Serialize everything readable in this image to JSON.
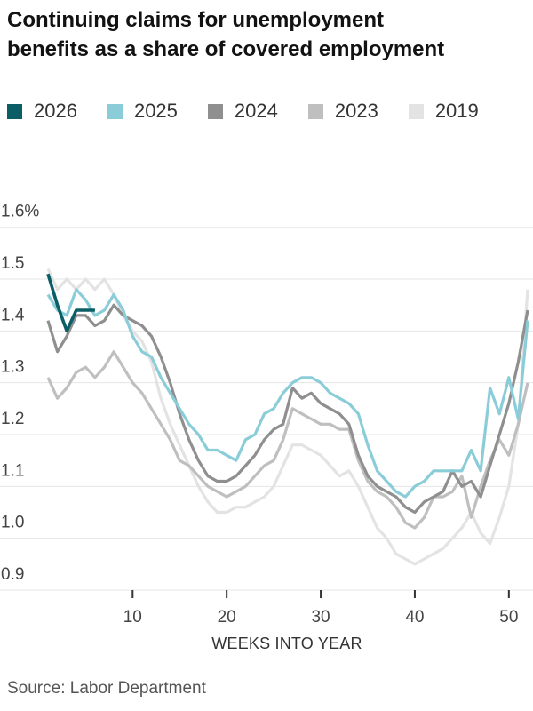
{
  "title_lines": [
    "Continuing claims for unemployment",
    "benefits as a share of covered employment"
  ],
  "source": "Source: Labor Department",
  "colors": {
    "y2026": "#0b5e66",
    "y2025": "#8acdd9",
    "y2024": "#8f8f8f",
    "y2023": "#bfbfbf",
    "y2019": "#e3e3e3",
    "gridline": "#e5e5e5",
    "tick": "#333333",
    "axis_text": "#444444"
  },
  "legend": {
    "items": [
      {
        "label": "2026",
        "color": "#0b5e66"
      },
      {
        "label": "2025",
        "color": "#8acdd9"
      },
      {
        "label": "2024",
        "color": "#8f8f8f"
      },
      {
        "label": "2023",
        "color": "#bfbfbf"
      },
      {
        "label": "2019",
        "color": "#e3e3e3"
      }
    ]
  },
  "chart_data": {
    "type": "line",
    "title": "Continuing claims for unemployment benefits as a share of covered employment",
    "xlabel": "WEEKS INTO YEAR",
    "ylabel": "",
    "xlim": [
      1,
      52
    ],
    "ylim": [
      0.9,
      1.6
    ],
    "grid": true,
    "legend_position": "top",
    "x_ticks": [
      10,
      20,
      30,
      40,
      50
    ],
    "y_ticks": [
      {
        "value": 1.6,
        "label": "1.6%"
      },
      {
        "value": 1.5,
        "label": "1.5"
      },
      {
        "value": 1.4,
        "label": "1.4"
      },
      {
        "value": 1.3,
        "label": "1.3"
      },
      {
        "value": 1.2,
        "label": "1.2"
      },
      {
        "value": 1.1,
        "label": "1.1"
      },
      {
        "value": 1.0,
        "label": "1.0"
      },
      {
        "value": 0.9,
        "label": "0.9"
      }
    ],
    "series": [
      {
        "name": "2019",
        "color": "#e3e3e3",
        "width": 3.2,
        "x_start": 1,
        "values": [
          1.52,
          1.48,
          1.5,
          1.48,
          1.5,
          1.48,
          1.5,
          1.47,
          1.43,
          1.4,
          1.38,
          1.34,
          1.27,
          1.22,
          1.18,
          1.14,
          1.1,
          1.07,
          1.05,
          1.05,
          1.06,
          1.06,
          1.07,
          1.08,
          1.1,
          1.14,
          1.18,
          1.18,
          1.17,
          1.16,
          1.14,
          1.12,
          1.13,
          1.1,
          1.06,
          1.02,
          1.0,
          0.97,
          0.96,
          0.95,
          0.96,
          0.97,
          0.98,
          1.0,
          1.02,
          1.05,
          1.01,
          0.99,
          1.04,
          1.1,
          1.22,
          1.48
        ]
      },
      {
        "name": "2023",
        "color": "#bfbfbf",
        "width": 3.2,
        "x_start": 1,
        "values": [
          1.31,
          1.27,
          1.29,
          1.32,
          1.33,
          1.31,
          1.33,
          1.36,
          1.33,
          1.3,
          1.28,
          1.25,
          1.22,
          1.19,
          1.15,
          1.14,
          1.12,
          1.1,
          1.09,
          1.08,
          1.09,
          1.1,
          1.12,
          1.14,
          1.15,
          1.19,
          1.25,
          1.24,
          1.23,
          1.22,
          1.22,
          1.21,
          1.21,
          1.15,
          1.11,
          1.09,
          1.08,
          1.06,
          1.03,
          1.02,
          1.04,
          1.08,
          1.08,
          1.09,
          1.12,
          1.04,
          1.1,
          1.15,
          1.19,
          1.16,
          1.22,
          1.3
        ]
      },
      {
        "name": "2024",
        "color": "#8f8f8f",
        "width": 3.2,
        "x_start": 1,
        "values": [
          1.42,
          1.36,
          1.39,
          1.43,
          1.43,
          1.41,
          1.42,
          1.45,
          1.43,
          1.42,
          1.41,
          1.39,
          1.35,
          1.3,
          1.24,
          1.19,
          1.15,
          1.12,
          1.11,
          1.11,
          1.12,
          1.14,
          1.16,
          1.19,
          1.21,
          1.22,
          1.29,
          1.27,
          1.28,
          1.26,
          1.25,
          1.24,
          1.22,
          1.16,
          1.12,
          1.1,
          1.09,
          1.08,
          1.06,
          1.05,
          1.07,
          1.08,
          1.09,
          1.13,
          1.1,
          1.11,
          1.08,
          1.14,
          1.2,
          1.26,
          1.34,
          1.44
        ]
      },
      {
        "name": "2025",
        "color": "#8acdd9",
        "width": 3.2,
        "x_start": 1,
        "values": [
          1.47,
          1.44,
          1.43,
          1.48,
          1.46,
          1.43,
          1.44,
          1.47,
          1.44,
          1.39,
          1.36,
          1.35,
          1.31,
          1.28,
          1.25,
          1.22,
          1.2,
          1.17,
          1.17,
          1.16,
          1.15,
          1.19,
          1.2,
          1.24,
          1.25,
          1.28,
          1.3,
          1.31,
          1.31,
          1.3,
          1.28,
          1.27,
          1.26,
          1.24,
          1.18,
          1.13,
          1.11,
          1.09,
          1.08,
          1.1,
          1.11,
          1.13,
          1.13,
          1.13,
          1.13,
          1.17,
          1.13,
          1.29,
          1.24,
          1.31,
          1.23,
          1.42
        ]
      },
      {
        "name": "2026",
        "color": "#0b5e66",
        "width": 3.6,
        "x_start": 1,
        "values": [
          1.51,
          1.45,
          1.4,
          1.44,
          1.44,
          1.44
        ]
      }
    ]
  }
}
